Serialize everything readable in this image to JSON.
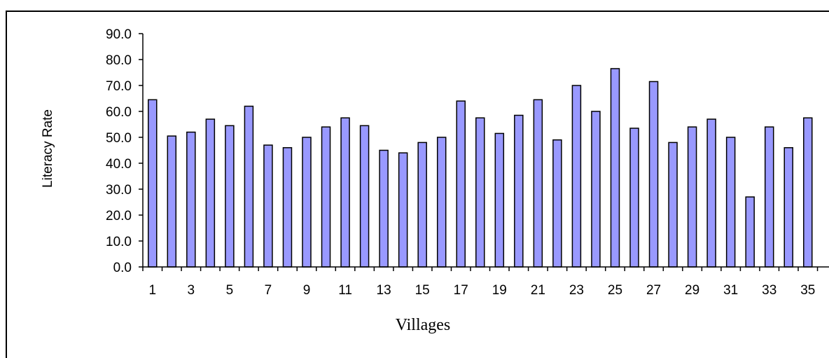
{
  "chart_data": {
    "type": "bar",
    "title": "",
    "xlabel": "Villages",
    "ylabel": "Literacy Rate",
    "ylim": [
      0,
      90
    ],
    "yticks": [
      0,
      10,
      20,
      30,
      40,
      50,
      60,
      70,
      80,
      90
    ],
    "ytick_labels": [
      "0.0",
      "10.0",
      "20.0",
      "30.0",
      "40.0",
      "50.0",
      "60.0",
      "70.0",
      "80.0",
      "90.0"
    ],
    "categories": [
      "1",
      "2",
      "3",
      "4",
      "5",
      "6",
      "7",
      "8",
      "9",
      "10",
      "11",
      "12",
      "13",
      "14",
      "15",
      "16",
      "17",
      "18",
      "19",
      "20",
      "21",
      "22",
      "23",
      "24",
      "25",
      "26",
      "27",
      "28",
      "29",
      "30",
      "31",
      "32",
      "33",
      "34",
      "35"
    ],
    "xtick_labels_shown": [
      "1",
      "3",
      "5",
      "7",
      "9",
      "11",
      "13",
      "15",
      "17",
      "19",
      "21",
      "23",
      "25",
      "27",
      "29",
      "31",
      "33",
      "35"
    ],
    "values": [
      64.5,
      50.5,
      52.0,
      57.0,
      54.5,
      62.0,
      47.0,
      46.0,
      50.0,
      54.0,
      57.5,
      54.5,
      45.0,
      44.0,
      48.0,
      50.0,
      64.0,
      57.5,
      51.5,
      58.5,
      64.5,
      49.0,
      70.0,
      60.0,
      76.5,
      53.5,
      71.5,
      48.0,
      54.0,
      57.0,
      50.0,
      27.0,
      54.0,
      46.0,
      57.5
    ],
    "bar_color": "#9999ff",
    "bar_edge_color": "#000000",
    "grid": false,
    "legend": "none"
  }
}
